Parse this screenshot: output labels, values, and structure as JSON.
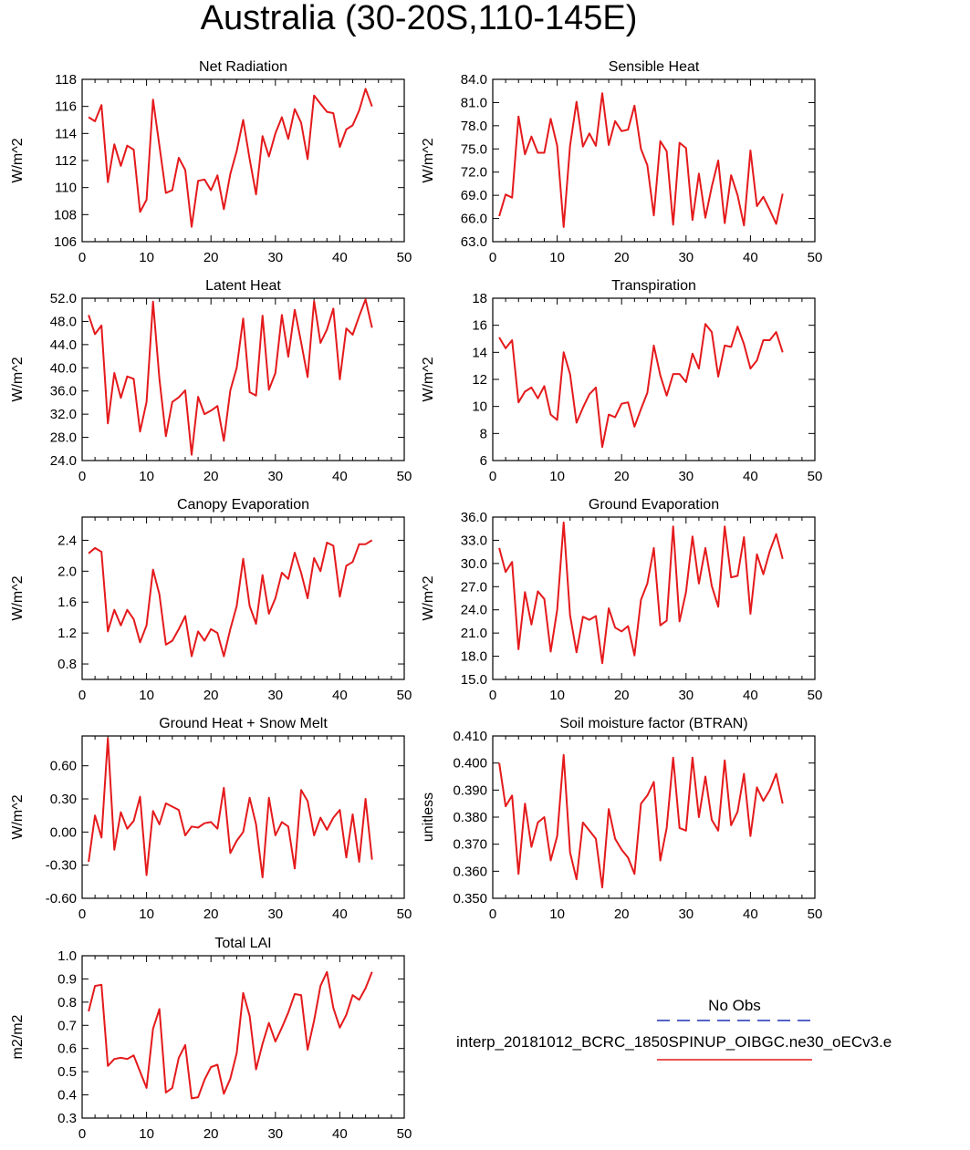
{
  "title": "Australia (30-20S,110-145E)",
  "chart_data": [
    {
      "type": "line",
      "title": "Net Radiation",
      "ylabel": "W/m^2",
      "xlim": [
        0,
        50
      ],
      "ylim": [
        106,
        118
      ],
      "xticks": [
        "0",
        "10",
        "20",
        "30",
        "40",
        "50"
      ],
      "yticks": [
        "106",
        "108",
        "110",
        "112",
        "114",
        "116",
        "118"
      ],
      "x_start": 1,
      "series": [
        {
          "values": [
            115.2,
            114.9,
            116.1,
            110.4,
            113.2,
            111.6,
            113.1,
            112.8,
            108.2,
            109.1,
            116.5,
            113.1,
            109.6,
            109.8,
            112.2,
            111.3,
            107.1,
            110.5,
            110.6,
            109.8,
            110.9,
            108.4,
            111.0,
            112.7,
            115.0,
            112.1,
            109.5,
            113.8,
            112.3,
            114.0,
            115.2,
            113.6,
            115.8,
            114.8,
            112.1,
            116.8,
            116.2,
            115.6,
            115.5,
            113.0,
            114.3,
            114.6,
            115.7,
            117.3,
            116.0
          ]
        }
      ]
    },
    {
      "type": "line",
      "title": "Sensible Heat",
      "ylabel": "W/m^2",
      "xlim": [
        0,
        50
      ],
      "ylim": [
        63,
        84
      ],
      "xticks": [
        "0",
        "10",
        "20",
        "30",
        "40",
        "50"
      ],
      "yticks": [
        "63.0",
        "66.0",
        "69.0",
        "72.0",
        "75.0",
        "78.0",
        "81.0",
        "84.0"
      ],
      "x_start": 1,
      "series": [
        {
          "values": [
            66.3,
            69.1,
            68.7,
            79.2,
            74.3,
            76.6,
            74.5,
            74.5,
            78.9,
            75.4,
            64.9,
            75.4,
            81.1,
            75.3,
            77.0,
            75.4,
            82.2,
            75.5,
            78.6,
            77.3,
            77.5,
            80.6,
            75.0,
            72.9,
            66.4,
            76.0,
            74.7,
            65.2,
            75.8,
            75.1,
            65.8,
            71.8,
            66.1,
            70.1,
            73.5,
            65.4,
            71.6,
            69.0,
            65.1,
            74.8,
            67.6,
            68.8,
            67.1,
            65.3,
            69.2
          ]
        }
      ]
    },
    {
      "type": "line",
      "title": "Latent Heat",
      "ylabel": "W/m^2",
      "xlim": [
        0,
        50
      ],
      "ylim": [
        24,
        52
      ],
      "xticks": [
        "0",
        "10",
        "20",
        "30",
        "40",
        "50"
      ],
      "yticks": [
        "24.0",
        "28.0",
        "32.0",
        "36.0",
        "40.0",
        "44.0",
        "48.0",
        "52.0"
      ],
      "x_start": 1,
      "series": [
        {
          "values": [
            49.1,
            45.8,
            47.3,
            30.4,
            39.1,
            34.8,
            38.5,
            38.1,
            29.0,
            34.1,
            51.4,
            38.1,
            28.2,
            34.1,
            34.9,
            36.1,
            25.0,
            35.0,
            32.0,
            32.6,
            33.4,
            27.4,
            36.1,
            40.0,
            48.5,
            35.8,
            35.2,
            49.0,
            36.2,
            39.1,
            49.1,
            41.9,
            50.0,
            44.4,
            38.4,
            51.5,
            44.3,
            46.6,
            50.2,
            38.0,
            46.8,
            45.7,
            48.9,
            51.8,
            46.9
          ]
        }
      ]
    },
    {
      "type": "line",
      "title": "Transpiration",
      "ylabel": "W/m^2",
      "xlim": [
        0,
        50
      ],
      "ylim": [
        6,
        18
      ],
      "xticks": [
        "0",
        "10",
        "20",
        "30",
        "40",
        "50"
      ],
      "yticks": [
        "6",
        "8",
        "10",
        "12",
        "14",
        "16",
        "18"
      ],
      "x_start": 1,
      "series": [
        {
          "values": [
            15.1,
            14.3,
            14.9,
            10.3,
            11.1,
            11.4,
            10.6,
            11.5,
            9.4,
            9.0,
            14.0,
            12.4,
            8.8,
            9.9,
            10.9,
            11.4,
            7.0,
            9.4,
            9.2,
            10.2,
            10.3,
            8.5,
            9.8,
            11.0,
            14.5,
            12.3,
            10.8,
            12.4,
            12.4,
            11.8,
            13.9,
            12.8,
            16.1,
            15.5,
            12.2,
            14.5,
            14.4,
            15.9,
            14.6,
            12.8,
            13.4,
            14.9,
            14.9,
            15.5,
            14.0
          ]
        }
      ]
    },
    {
      "type": "line",
      "title": "Canopy Evaporation",
      "ylabel": "W/m^2",
      "xlim": [
        0,
        50
      ],
      "ylim": [
        0.6,
        2.7
      ],
      "xticks": [
        "0",
        "10",
        "20",
        "30",
        "40",
        "50"
      ],
      "yticks": [
        "0.8",
        "1.2",
        "1.6",
        "2.0",
        "2.4"
      ],
      "x_start": 1,
      "series": [
        {
          "values": [
            2.23,
            2.3,
            2.25,
            1.22,
            1.5,
            1.3,
            1.5,
            1.38,
            1.08,
            1.3,
            2.02,
            1.7,
            1.05,
            1.1,
            1.25,
            1.42,
            0.9,
            1.22,
            1.1,
            1.25,
            1.2,
            0.9,
            1.25,
            1.55,
            2.16,
            1.55,
            1.32,
            1.95,
            1.45,
            1.65,
            1.98,
            1.9,
            2.24,
            1.98,
            1.65,
            2.17,
            2.0,
            2.37,
            2.33,
            1.67,
            2.07,
            2.12,
            2.35,
            2.35,
            2.4
          ]
        }
      ]
    },
    {
      "type": "line",
      "title": "Ground Evaporation",
      "ylabel": "W/m^2",
      "xlim": [
        0,
        50
      ],
      "ylim": [
        15,
        36
      ],
      "xticks": [
        "0",
        "10",
        "20",
        "30",
        "40",
        "50"
      ],
      "yticks": [
        "15.0",
        "18.0",
        "21.0",
        "24.0",
        "27.0",
        "30.0",
        "33.0",
        "36.0"
      ],
      "x_start": 1,
      "series": [
        {
          "values": [
            32.0,
            28.9,
            30.2,
            18.9,
            26.3,
            22.1,
            26.4,
            25.4,
            18.6,
            24.0,
            35.3,
            23.3,
            18.5,
            23.1,
            22.7,
            23.2,
            17.1,
            24.2,
            21.7,
            21.2,
            21.9,
            18.1,
            25.3,
            27.4,
            32.0,
            22.0,
            22.6,
            34.8,
            22.5,
            26.3,
            33.5,
            27.4,
            32.0,
            27.1,
            24.4,
            34.8,
            28.2,
            28.4,
            33.4,
            23.5,
            31.2,
            28.6,
            31.6,
            33.8,
            30.6
          ]
        }
      ]
    },
    {
      "type": "line",
      "title": "Ground Heat + Snow Melt",
      "ylabel": "W/m^2",
      "xlim": [
        0,
        50
      ],
      "ylim": [
        -0.6,
        0.87
      ],
      "xticks": [
        "0",
        "10",
        "20",
        "30",
        "40",
        "50"
      ],
      "yticks": [
        "-0.60",
        "-0.30",
        "0.00",
        "0.30",
        "0.60"
      ],
      "x_start": 1,
      "series": [
        {
          "values": [
            -0.27,
            0.15,
            -0.05,
            0.85,
            -0.16,
            0.18,
            0.03,
            0.1,
            0.32,
            -0.39,
            0.19,
            0.07,
            0.26,
            0.23,
            0.2,
            -0.03,
            0.05,
            0.04,
            0.08,
            0.09,
            0.03,
            0.4,
            -0.19,
            -0.08,
            0.0,
            0.31,
            0.07,
            -0.41,
            0.31,
            -0.03,
            0.09,
            0.05,
            -0.33,
            0.38,
            0.28,
            -0.03,
            0.13,
            0.02,
            0.13,
            0.2,
            -0.23,
            0.16,
            -0.27,
            0.3,
            -0.25
          ]
        }
      ]
    },
    {
      "type": "line",
      "title": "Soil moisture factor (BTRAN)",
      "ylabel": "unitless",
      "xlim": [
        0,
        50
      ],
      "ylim": [
        0.35,
        0.41
      ],
      "xticks": [
        "0",
        "10",
        "20",
        "30",
        "40",
        "50"
      ],
      "yticks": [
        "0.350",
        "0.360",
        "0.370",
        "0.380",
        "0.390",
        "0.400",
        "0.410"
      ],
      "x_start": 1,
      "series": [
        {
          "values": [
            0.4,
            0.384,
            0.388,
            0.359,
            0.385,
            0.369,
            0.378,
            0.38,
            0.364,
            0.373,
            0.403,
            0.367,
            0.357,
            0.378,
            0.375,
            0.372,
            0.354,
            0.383,
            0.372,
            0.368,
            0.365,
            0.359,
            0.385,
            0.388,
            0.393,
            0.364,
            0.376,
            0.402,
            0.376,
            0.375,
            0.402,
            0.38,
            0.395,
            0.379,
            0.375,
            0.401,
            0.377,
            0.382,
            0.396,
            0.373,
            0.391,
            0.386,
            0.39,
            0.396,
            0.385
          ]
        }
      ]
    },
    {
      "type": "line",
      "title": "Total LAI",
      "ylabel": "m2/m2",
      "xlim": [
        0,
        50
      ],
      "ylim": [
        0.3,
        1.0
      ],
      "xticks": [
        "0",
        "10",
        "20",
        "30",
        "40",
        "50"
      ],
      "yticks": [
        "0.3",
        "0.4",
        "0.5",
        "0.6",
        "0.7",
        "0.8",
        "0.9",
        "1.0"
      ],
      "x_start": 1,
      "series": [
        {
          "values": [
            0.76,
            0.87,
            0.875,
            0.525,
            0.555,
            0.56,
            0.555,
            0.57,
            0.5,
            0.43,
            0.685,
            0.77,
            0.41,
            0.43,
            0.56,
            0.615,
            0.385,
            0.39,
            0.465,
            0.52,
            0.53,
            0.405,
            0.47,
            0.58,
            0.84,
            0.74,
            0.51,
            0.62,
            0.71,
            0.63,
            0.69,
            0.755,
            0.835,
            0.83,
            0.595,
            0.72,
            0.87,
            0.93,
            0.775,
            0.69,
            0.745,
            0.83,
            0.81,
            0.86,
            0.93
          ]
        }
      ]
    }
  ],
  "legend": {
    "entries": [
      {
        "label": "No Obs",
        "color": "#1c2fb6",
        "style": "dashed"
      },
      {
        "label": "interp_20181012_BCRC_1850SPINUP_OIBGC.ne30_oECv3.e",
        "color": "#e41a1c",
        "style": "solid"
      }
    ]
  }
}
